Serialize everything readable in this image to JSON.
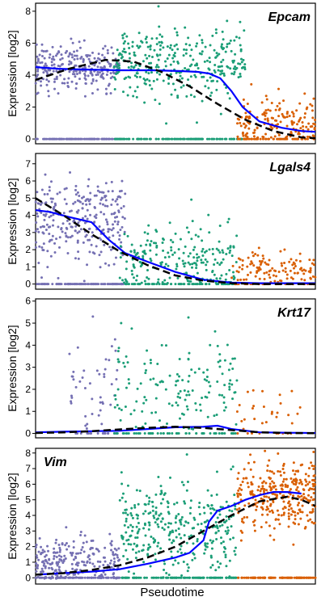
{
  "colors": {
    "cluster_a": "#7570b3",
    "cluster_b": "#1b9e77",
    "cluster_c": "#d95f02",
    "smooth_line": "#0000ff",
    "fit_line": "#000000"
  },
  "xlabel": "Pseudotime",
  "chart_data": [
    {
      "type": "scatter",
      "gene": "Epcam",
      "ylabel": "Expression [log2]",
      "xlim": [
        0,
        1
      ],
      "ylim": [
        -0.3,
        8.5
      ],
      "yticks": [
        0,
        2,
        4,
        6,
        8
      ],
      "ytick_labels": [
        "0",
        "2",
        "4",
        "6",
        "8"
      ],
      "series": [
        {
          "x": [
            0.0,
            0.08,
            0.18,
            0.3,
            0.42,
            0.52,
            0.58,
            0.62,
            0.66,
            0.7,
            0.74,
            0.8,
            0.88,
            0.95,
            1.0
          ],
          "y": [
            4.5,
            4.4,
            4.35,
            4.3,
            4.3,
            4.25,
            4.2,
            4.1,
            3.8,
            3.0,
            2.0,
            1.1,
            0.7,
            0.5,
            0.45
          ]
        },
        {
          "x": [
            0.0,
            0.12,
            0.25,
            0.35,
            0.45,
            0.55,
            0.65,
            0.75,
            0.85,
            0.95,
            1.0
          ],
          "y": [
            3.7,
            4.4,
            4.95,
            4.85,
            4.2,
            3.3,
            2.2,
            1.2,
            0.5,
            0.1,
            0.05
          ]
        }
      ],
      "clusters": [
        {
          "x_range": [
            0.0,
            0.3
          ],
          "center": 4.4,
          "spread": 0.75,
          "n": 260
        },
        {
          "x_range": [
            0.28,
            0.75
          ],
          "center": 4.7,
          "spread": 1.1,
          "n": 330
        },
        {
          "x_range": [
            0.72,
            1.0
          ],
          "center": 0.9,
          "spread": 0.8,
          "n": 160
        }
      ]
    },
    {
      "type": "scatter",
      "gene": "Lgals4",
      "ylabel": "Expression [log2]",
      "xlim": [
        0,
        1
      ],
      "ylim": [
        -0.3,
        7.6
      ],
      "yticks": [
        0,
        1,
        2,
        3,
        4,
        5,
        6,
        7
      ],
      "ytick_labels": [
        "0",
        "1",
        "2",
        "3",
        "4",
        "5",
        "6",
        "7"
      ],
      "series": [
        {
          "x": [
            0.0,
            0.05,
            0.12,
            0.2,
            0.26,
            0.32,
            0.4,
            0.5,
            0.6,
            0.7,
            0.8,
            0.9,
            1.0
          ],
          "y": [
            4.3,
            4.2,
            3.9,
            3.6,
            2.6,
            1.8,
            1.3,
            0.7,
            0.25,
            0.08,
            0.05,
            0.05,
            0.05
          ]
        },
        {
          "x": [
            0.0,
            0.1,
            0.2,
            0.3,
            0.4,
            0.5,
            0.6,
            0.7,
            0.8,
            0.9,
            1.0
          ],
          "y": [
            5.0,
            4.0,
            2.9,
            1.9,
            1.1,
            0.5,
            0.2,
            0.05,
            0.0,
            0.0,
            0.0
          ]
        }
      ],
      "clusters": [
        {
          "x_range": [
            0.0,
            0.32
          ],
          "center": 3.6,
          "spread": 1.3,
          "n": 280
        },
        {
          "x_range": [
            0.3,
            0.72
          ],
          "center": 1.4,
          "spread": 1.0,
          "n": 220
        },
        {
          "x_range": [
            0.7,
            1.0
          ],
          "center": 0.9,
          "spread": 0.5,
          "n": 110
        }
      ]
    },
    {
      "type": "scatter",
      "gene": "Krt17",
      "ylabel": "Expression [log2]",
      "xlim": [
        0,
        1
      ],
      "ylim": [
        -0.2,
        6.1
      ],
      "yticks": [
        0,
        1,
        2,
        3,
        4,
        5,
        6
      ],
      "ytick_labels": [
        "0",
        "1",
        "2",
        "3",
        "4",
        "5",
        "6"
      ],
      "series": [
        {
          "x": [
            0.0,
            0.1,
            0.2,
            0.3,
            0.4,
            0.5,
            0.6,
            0.65,
            0.7,
            0.8,
            0.9,
            1.0
          ],
          "y": [
            0.05,
            0.08,
            0.1,
            0.12,
            0.2,
            0.28,
            0.3,
            0.35,
            0.2,
            0.05,
            0.03,
            0.02
          ]
        },
        {
          "x": [
            0.0,
            0.1,
            0.2,
            0.3,
            0.4,
            0.5,
            0.6,
            0.7,
            0.8,
            0.9,
            1.0
          ],
          "y": [
            0.02,
            0.05,
            0.1,
            0.18,
            0.25,
            0.3,
            0.25,
            0.15,
            0.05,
            0.02,
            0.01
          ]
        }
      ],
      "clusters": [
        {
          "x_range": [
            0.12,
            0.3
          ],
          "center": 2.0,
          "spread": 1.2,
          "n": 45
        },
        {
          "x_range": [
            0.28,
            0.72
          ],
          "center": 2.0,
          "spread": 1.2,
          "n": 150
        },
        {
          "x_range": [
            0.72,
            0.95
          ],
          "center": 0.8,
          "spread": 0.6,
          "n": 25
        }
      ]
    },
    {
      "type": "scatter",
      "gene": "Vim",
      "ylabel": "Expression [log2]",
      "xlim": [
        0,
        1
      ],
      "ylim": [
        -0.4,
        8.3
      ],
      "yticks": [
        0,
        1,
        2,
        3,
        4,
        5,
        6,
        7,
        8
      ],
      "ytick_labels": [
        "0",
        "1",
        "2",
        "3",
        "4",
        "5",
        "6",
        "7",
        "8"
      ],
      "series": [
        {
          "x": [
            0.0,
            0.1,
            0.2,
            0.3,
            0.4,
            0.5,
            0.55,
            0.6,
            0.62,
            0.65,
            0.7,
            0.75,
            0.8,
            0.85,
            0.9,
            0.95
          ],
          "y": [
            0.2,
            0.3,
            0.4,
            0.55,
            0.9,
            1.3,
            1.6,
            2.4,
            3.6,
            4.3,
            4.6,
            5.0,
            5.3,
            5.5,
            5.5,
            5.4
          ]
        },
        {
          "x": [
            0.0,
            0.1,
            0.2,
            0.3,
            0.4,
            0.5,
            0.6,
            0.7,
            0.8,
            0.9,
            0.95,
            1.0
          ],
          "y": [
            0.2,
            0.3,
            0.5,
            0.8,
            1.3,
            2.0,
            3.0,
            4.0,
            4.9,
            5.2,
            5.0,
            4.6
          ]
        }
      ],
      "clusters": [
        {
          "x_range": [
            0.0,
            0.3
          ],
          "center": 1.0,
          "spread": 0.8,
          "n": 230
        },
        {
          "x_range": [
            0.3,
            0.72
          ],
          "center": 3.2,
          "spread": 1.5,
          "n": 330
        },
        {
          "x_range": [
            0.72,
            1.0
          ],
          "center": 5.3,
          "spread": 1.2,
          "n": 300
        }
      ]
    }
  ]
}
